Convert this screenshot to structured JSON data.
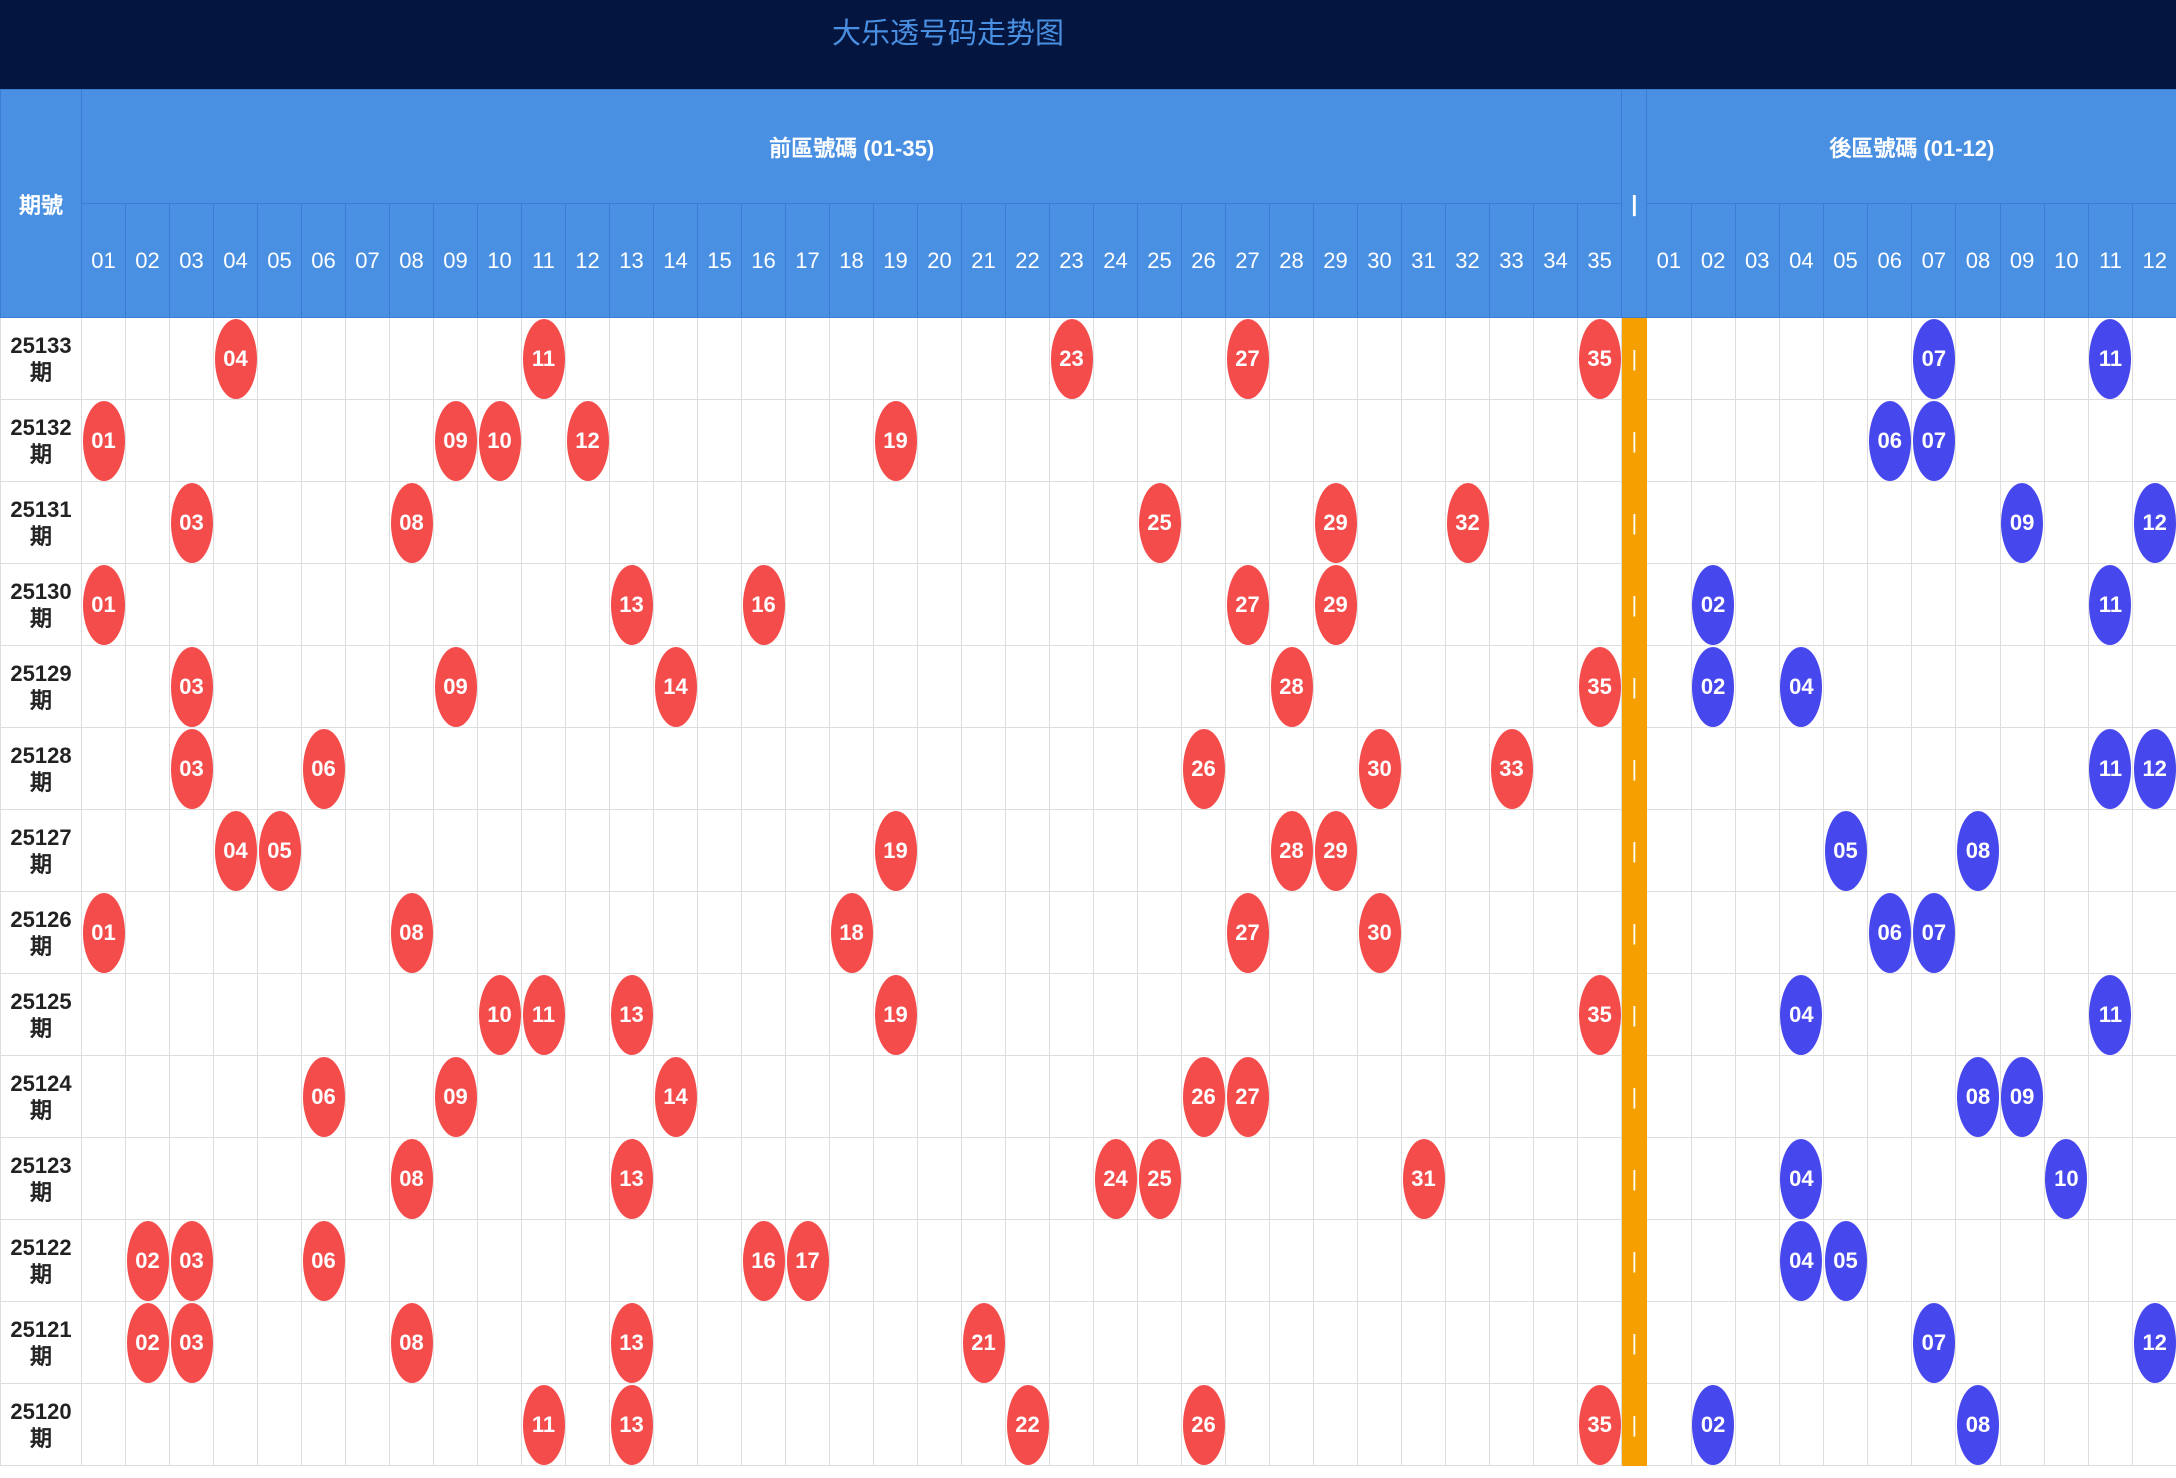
{
  "title": "大乐透号码走势图",
  "header": {
    "period": "期號",
    "front_title": "前區號碼 (01-35)",
    "back_title": "後區號碼 (01-12)",
    "separator": "|",
    "front_numbers": [
      "01",
      "02",
      "03",
      "04",
      "05",
      "06",
      "07",
      "08",
      "09",
      "10",
      "11",
      "12",
      "13",
      "14",
      "15",
      "16",
      "17",
      "18",
      "19",
      "20",
      "21",
      "22",
      "23",
      "24",
      "25",
      "26",
      "27",
      "28",
      "29",
      "30",
      "31",
      "32",
      "33",
      "34",
      "35"
    ],
    "back_numbers": [
      "01",
      "02",
      "03",
      "04",
      "05",
      "06",
      "07",
      "08",
      "09",
      "10",
      "11",
      "12"
    ]
  },
  "rows": [
    {
      "period": "25133期",
      "front": [
        "04",
        "11",
        "23",
        "27",
        "35"
      ],
      "back": [
        "07",
        "11"
      ]
    },
    {
      "period": "25132期",
      "front": [
        "01",
        "09",
        "10",
        "12",
        "19"
      ],
      "back": [
        "06",
        "07"
      ]
    },
    {
      "period": "25131期",
      "front": [
        "03",
        "08",
        "25",
        "29",
        "32"
      ],
      "back": [
        "09",
        "12"
      ]
    },
    {
      "period": "25130期",
      "front": [
        "01",
        "13",
        "16",
        "27",
        "29"
      ],
      "back": [
        "02",
        "11"
      ]
    },
    {
      "period": "25129期",
      "front": [
        "03",
        "09",
        "14",
        "28",
        "35"
      ],
      "back": [
        "02",
        "04"
      ]
    },
    {
      "period": "25128期",
      "front": [
        "03",
        "06",
        "26",
        "30",
        "33"
      ],
      "back": [
        "11",
        "12"
      ]
    },
    {
      "period": "25127期",
      "front": [
        "04",
        "05",
        "19",
        "28",
        "29"
      ],
      "back": [
        "05",
        "08"
      ]
    },
    {
      "period": "25126期",
      "front": [
        "01",
        "08",
        "18",
        "27",
        "30"
      ],
      "back": [
        "06",
        "07"
      ]
    },
    {
      "period": "25125期",
      "front": [
        "10",
        "11",
        "13",
        "19",
        "35"
      ],
      "back": [
        "04",
        "11"
      ]
    },
    {
      "period": "25124期",
      "front": [
        "06",
        "09",
        "14",
        "26",
        "27"
      ],
      "back": [
        "08",
        "09"
      ]
    },
    {
      "period": "25123期",
      "front": [
        "08",
        "13",
        "24",
        "25",
        "31"
      ],
      "back": [
        "04",
        "10"
      ]
    },
    {
      "period": "25122期",
      "front": [
        "02",
        "03",
        "06",
        "16",
        "17"
      ],
      "back": [
        "04",
        "05"
      ]
    },
    {
      "period": "25121期",
      "front": [
        "02",
        "03",
        "08",
        "13",
        "21"
      ],
      "back": [
        "07",
        "12"
      ]
    },
    {
      "period": "25120期",
      "front": [
        "11",
        "13",
        "22",
        "26",
        "35"
      ],
      "back": [
        "02",
        "08"
      ]
    }
  ]
}
